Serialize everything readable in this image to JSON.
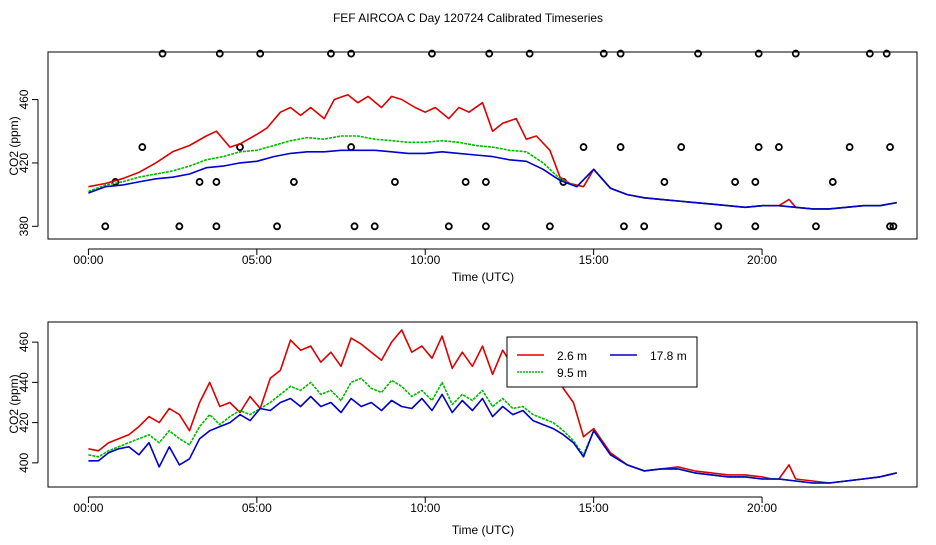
{
  "chart_data": [
    {
      "type": "line",
      "title": "FEF AIRCOA C  Day 120724  Calibrated Timeseries",
      "xlabel": "Time (UTC)",
      "ylabel": "CO2 (ppm)",
      "xlim": [
        -1.2,
        24.6
      ],
      "ylim": [
        372,
        490
      ],
      "x_ticks": [
        0,
        5,
        10,
        15,
        20
      ],
      "x_tick_labels": [
        "00:00",
        "05:00",
        "10:00",
        "15:00",
        "20:00"
      ],
      "y_ticks": [
        380,
        420,
        460
      ],
      "y_tick_labels": [
        "380",
        "420",
        "460"
      ],
      "series": [
        {
          "name": "2.6 m",
          "color": "#dd0000",
          "x": [
            0.0,
            0.5,
            1.0,
            1.5,
            2.0,
            2.5,
            3.0,
            3.5,
            3.8,
            4.2,
            4.5,
            5.0,
            5.3,
            5.7,
            6.0,
            6.3,
            6.6,
            7.0,
            7.3,
            7.7,
            8.0,
            8.3,
            8.7,
            9.0,
            9.3,
            9.7,
            10.0,
            10.3,
            10.7,
            11.0,
            11.3,
            11.7,
            12.0,
            12.3,
            12.7,
            13.0,
            13.3,
            13.7,
            14.0,
            14.3,
            14.7,
            15.0,
            15.5,
            16.0,
            16.5,
            17.0,
            17.5,
            18.0,
            18.5,
            19.0,
            19.5,
            20.0,
            20.5,
            20.8,
            21.0,
            21.5,
            22.0,
            22.5,
            23.0,
            23.5,
            24.0
          ],
          "values": [
            405,
            407,
            410,
            414,
            420,
            427,
            431,
            437,
            440,
            430,
            432,
            438,
            442,
            452,
            455,
            450,
            455,
            448,
            460,
            463,
            458,
            462,
            455,
            462,
            460,
            455,
            452,
            455,
            448,
            455,
            452,
            458,
            440,
            445,
            448,
            435,
            437,
            428,
            411,
            407,
            405,
            416,
            404,
            400,
            398,
            397,
            396,
            395,
            394,
            393,
            392,
            393,
            393,
            397,
            392,
            391,
            391,
            392,
            393,
            393,
            395
          ]
        },
        {
          "name": "9.5 m",
          "color": "#00bb00",
          "x": [
            0.0,
            0.5,
            1.0,
            1.5,
            2.0,
            2.5,
            3.0,
            3.5,
            4.0,
            4.5,
            5.0,
            5.5,
            6.0,
            6.5,
            7.0,
            7.5,
            8.0,
            8.5,
            9.0,
            9.5,
            10.0,
            10.5,
            11.0,
            11.5,
            12.0,
            12.5,
            13.0,
            13.5,
            14.0,
            14.5,
            15.0,
            15.5,
            16.0,
            16.5,
            17.0,
            17.5,
            18.0,
            18.5,
            19.0,
            19.5,
            20.0,
            20.5,
            21.0,
            21.5,
            22.0,
            22.5,
            23.0,
            23.5,
            24.0
          ],
          "values": [
            402,
            406,
            408,
            411,
            413,
            415,
            418,
            422,
            424,
            427,
            428,
            431,
            434,
            436,
            435,
            437,
            437,
            435,
            434,
            433,
            433,
            434,
            433,
            431,
            430,
            428,
            427,
            420,
            410,
            405,
            416,
            404,
            400,
            398,
            397,
            396,
            395,
            394,
            393,
            392,
            393,
            393,
            392,
            391,
            391,
            392,
            393,
            393,
            395
          ]
        },
        {
          "name": "17.8 m",
          "color": "#0000cc",
          "x": [
            0.0,
            0.5,
            1.0,
            1.5,
            2.0,
            2.5,
            3.0,
            3.5,
            4.0,
            4.5,
            5.0,
            5.5,
            6.0,
            6.5,
            7.0,
            7.5,
            8.0,
            8.5,
            9.0,
            9.5,
            10.0,
            10.5,
            11.0,
            11.5,
            12.0,
            12.5,
            13.0,
            13.5,
            14.0,
            14.5,
            15.0,
            15.5,
            16.0,
            16.5,
            17.0,
            17.5,
            18.0,
            18.5,
            19.0,
            19.5,
            20.0,
            20.5,
            21.0,
            21.5,
            22.0,
            22.5,
            23.0,
            23.5,
            24.0
          ],
          "values": [
            401,
            405,
            406,
            408,
            410,
            411,
            413,
            417,
            418,
            420,
            421,
            424,
            426,
            427,
            427,
            428,
            428,
            428,
            427,
            426,
            426,
            427,
            426,
            425,
            424,
            422,
            421,
            416,
            409,
            405,
            416,
            404,
            400,
            398,
            397,
            396,
            395,
            394,
            393,
            392,
            393,
            393,
            392,
            391,
            391,
            392,
            393,
            393,
            395
          ]
        }
      ],
      "flag_points": {
        "x": [
          0.5,
          2.2,
          2.7,
          3.8,
          3.9,
          5.1,
          5.6,
          7.2,
          7.8,
          7.9,
          8.5,
          10.2,
          10.7,
          11.8,
          11.9,
          13.1,
          13.7,
          15.3,
          15.8,
          15.9,
          16.5,
          18.1,
          18.7,
          19.8,
          19.9,
          21.0,
          21.6,
          23.2,
          23.7,
          23.8,
          23.9,
          0.8,
          1.6,
          3.3,
          3.8,
          4.5,
          6.1,
          7.8,
          9.1,
          11.2,
          11.8,
          14.1,
          14.7,
          15.8,
          17.1,
          17.6,
          19.2,
          19.8,
          19.9,
          20.5,
          22.1,
          22.6,
          23.8
        ],
        "values": [
          380,
          489,
          380,
          380,
          489,
          489,
          380,
          489,
          489,
          380,
          380,
          489,
          380,
          380,
          489,
          489,
          380,
          489,
          489,
          380,
          380,
          489,
          380,
          380,
          489,
          489,
          380,
          489,
          489,
          380,
          380,
          408,
          430,
          408,
          408,
          430,
          408,
          430,
          408,
          408,
          408,
          408,
          430,
          430,
          408,
          430,
          408,
          408,
          430,
          430,
          408,
          430,
          430
        ]
      },
      "legend": null
    },
    {
      "type": "line",
      "title": "",
      "xlabel": "Time (UTC)",
      "ylabel": "CO2 (ppm)",
      "xlim": [
        -1.2,
        24.6
      ],
      "ylim": [
        388,
        470
      ],
      "x_ticks": [
        0,
        5,
        10,
        15,
        20
      ],
      "x_tick_labels": [
        "00:00",
        "05:00",
        "10:00",
        "15:00",
        "20:00"
      ],
      "y_ticks": [
        400,
        420,
        440,
        460
      ],
      "y_tick_labels": [
        "400",
        "420",
        "440",
        "460"
      ],
      "series": [
        {
          "name": "2.6 m",
          "color": "#dd0000",
          "x": [
            0.0,
            0.3,
            0.6,
            0.9,
            1.2,
            1.5,
            1.8,
            2.1,
            2.4,
            2.7,
            3.0,
            3.3,
            3.6,
            3.9,
            4.2,
            4.5,
            4.8,
            5.1,
            5.4,
            5.7,
            6.0,
            6.3,
            6.6,
            6.9,
            7.2,
            7.5,
            7.8,
            8.1,
            8.4,
            8.7,
            9.0,
            9.3,
            9.6,
            9.9,
            10.2,
            10.5,
            10.8,
            11.1,
            11.4,
            11.7,
            12.0,
            12.3,
            12.6,
            12.9,
            13.2,
            13.5,
            13.8,
            14.1,
            14.4,
            14.7,
            15.0,
            15.5,
            16.0,
            16.5,
            17.0,
            17.5,
            18.0,
            18.5,
            19.0,
            19.5,
            20.0,
            20.3,
            20.5,
            20.8,
            21.0,
            21.5,
            22.0,
            22.5,
            23.0,
            23.5,
            24.0
          ],
          "values": [
            407,
            406,
            410,
            412,
            414,
            418,
            423,
            420,
            427,
            424,
            416,
            430,
            440,
            428,
            430,
            425,
            433,
            427,
            442,
            446,
            461,
            456,
            458,
            450,
            455,
            448,
            462,
            459,
            455,
            451,
            460,
            466,
            455,
            458,
            452,
            463,
            447,
            455,
            448,
            458,
            444,
            456,
            448,
            455,
            460,
            442,
            455,
            437,
            430,
            413,
            417,
            405,
            399,
            396,
            397,
            398,
            396,
            395,
            394,
            394,
            393,
            392,
            392,
            399,
            392,
            391,
            390,
            391,
            392,
            393,
            395
          ]
        },
        {
          "name": "9.5 m",
          "color": "#00bb00",
          "x": [
            0.0,
            0.3,
            0.6,
            0.9,
            1.2,
            1.5,
            1.8,
            2.1,
            2.4,
            2.7,
            3.0,
            3.3,
            3.6,
            3.9,
            4.2,
            4.5,
            4.8,
            5.1,
            5.4,
            5.7,
            6.0,
            6.3,
            6.6,
            6.9,
            7.2,
            7.5,
            7.8,
            8.1,
            8.4,
            8.7,
            9.0,
            9.3,
            9.6,
            9.9,
            10.2,
            10.5,
            10.8,
            11.1,
            11.4,
            11.7,
            12.0,
            12.3,
            12.6,
            12.9,
            13.2,
            13.5,
            13.8,
            14.1,
            14.4,
            14.7,
            15.0,
            15.5,
            16.0,
            16.5,
            17.0,
            17.5,
            18.0,
            18.5,
            19.0,
            19.5,
            20.0,
            20.5,
            21.0,
            21.5,
            22.0,
            22.5,
            23.0,
            23.5,
            24.0
          ],
          "values": [
            404,
            403,
            406,
            408,
            410,
            412,
            414,
            410,
            416,
            412,
            409,
            418,
            424,
            419,
            423,
            426,
            424,
            427,
            430,
            434,
            438,
            436,
            440,
            434,
            436,
            431,
            440,
            442,
            437,
            435,
            441,
            438,
            433,
            436,
            431,
            440,
            429,
            434,
            431,
            436,
            428,
            432,
            427,
            428,
            424,
            422,
            420,
            416,
            411,
            404,
            416,
            404,
            399,
            396,
            397,
            397,
            395,
            394,
            393,
            393,
            392,
            392,
            391,
            390,
            390,
            391,
            392,
            393,
            395
          ]
        },
        {
          "name": "17.8 m",
          "color": "#0000cc",
          "x": [
            0.0,
            0.3,
            0.6,
            0.9,
            1.2,
            1.5,
            1.8,
            2.1,
            2.4,
            2.7,
            3.0,
            3.3,
            3.6,
            3.9,
            4.2,
            4.5,
            4.8,
            5.1,
            5.4,
            5.7,
            6.0,
            6.3,
            6.6,
            6.9,
            7.2,
            7.5,
            7.8,
            8.1,
            8.4,
            8.7,
            9.0,
            9.3,
            9.6,
            9.9,
            10.2,
            10.5,
            10.8,
            11.1,
            11.4,
            11.7,
            12.0,
            12.3,
            12.6,
            12.9,
            13.2,
            13.5,
            13.8,
            14.1,
            14.4,
            14.7,
            15.0,
            15.5,
            16.0,
            16.5,
            17.0,
            17.5,
            18.0,
            18.5,
            19.0,
            19.5,
            20.0,
            20.5,
            21.0,
            21.5,
            22.0,
            22.5,
            23.0,
            23.5,
            24.0
          ],
          "values": [
            401,
            401,
            405,
            407,
            408,
            404,
            410,
            398,
            408,
            399,
            402,
            412,
            416,
            418,
            420,
            424,
            421,
            427,
            426,
            430,
            432,
            428,
            433,
            428,
            430,
            425,
            432,
            428,
            430,
            426,
            431,
            428,
            427,
            432,
            426,
            434,
            425,
            431,
            426,
            432,
            423,
            428,
            424,
            426,
            421,
            419,
            417,
            414,
            410,
            403,
            416,
            404,
            399,
            396,
            397,
            397,
            395,
            394,
            393,
            393,
            392,
            392,
            391,
            390,
            390,
            391,
            392,
            393,
            395
          ]
        }
      ],
      "flag_points": null,
      "legend": {
        "position": "top-right",
        "entries": [
          "2.6 m",
          "9.5 m",
          "17.8 m"
        ]
      }
    }
  ]
}
